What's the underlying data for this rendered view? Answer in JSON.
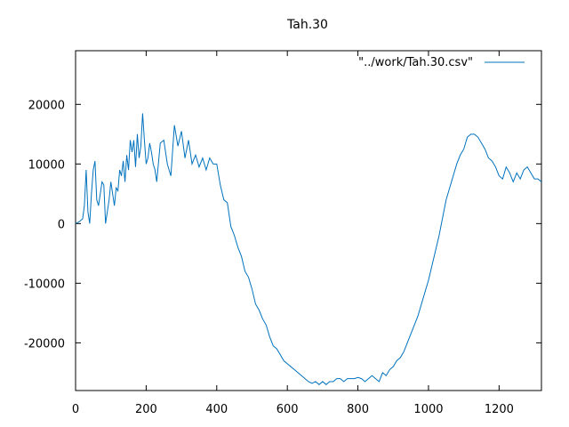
{
  "chart_data": {
    "type": "line",
    "title": "Tah.30",
    "xlabel": "",
    "ylabel": "",
    "xlim": [
      0,
      1320
    ],
    "ylim": [
      -28000,
      29000
    ],
    "x_ticks": [
      0,
      200,
      400,
      600,
      800,
      1000,
      1200
    ],
    "y_ticks": [
      -20000,
      -10000,
      0,
      10000,
      20000
    ],
    "x_tick_labels": [
      "0",
      "200",
      "400",
      "600",
      "800",
      "1000",
      "1200"
    ],
    "y_tick_labels": [
      "-20000",
      "-10000",
      "0",
      "10000",
      "20000"
    ],
    "grid": false,
    "legend": {
      "position": "top-right",
      "entries": [
        "\"../work/Tah.30.csv\""
      ]
    },
    "series": [
      {
        "name": "\"../work/Tah.30.csv\"",
        "color": "#0072bd",
        "x": [
          0,
          10,
          20,
          25,
          30,
          35,
          40,
          45,
          50,
          55,
          60,
          65,
          70,
          75,
          80,
          85,
          90,
          95,
          100,
          105,
          110,
          115,
          120,
          125,
          130,
          135,
          140,
          145,
          150,
          155,
          160,
          165,
          170,
          175,
          180,
          185,
          190,
          195,
          200,
          205,
          210,
          215,
          220,
          225,
          230,
          240,
          250,
          260,
          270,
          280,
          290,
          300,
          310,
          320,
          330,
          340,
          350,
          360,
          370,
          380,
          390,
          400,
          410,
          420,
          430,
          440,
          450,
          460,
          470,
          480,
          490,
          500,
          510,
          520,
          530,
          540,
          550,
          560,
          570,
          580,
          590,
          600,
          610,
          620,
          630,
          640,
          650,
          660,
          670,
          680,
          690,
          700,
          710,
          720,
          730,
          740,
          750,
          760,
          770,
          780,
          790,
          800,
          810,
          820,
          830,
          840,
          850,
          860,
          870,
          880,
          890,
          900,
          910,
          920,
          930,
          940,
          950,
          960,
          970,
          980,
          990,
          1000,
          1010,
          1020,
          1030,
          1040,
          1050,
          1060,
          1070,
          1080,
          1090,
          1100,
          1110,
          1120,
          1130,
          1140,
          1150,
          1160,
          1170,
          1180,
          1190,
          1200,
          1210,
          1220,
          1230,
          1240,
          1250,
          1260,
          1270,
          1280,
          1290,
          1300,
          1310,
          1320
        ],
        "values": [
          0,
          300,
          800,
          3000,
          9000,
          2000,
          0,
          5000,
          9000,
          10500,
          4000,
          3000,
          5000,
          7000,
          6500,
          0,
          2000,
          4000,
          7000,
          5000,
          3000,
          6000,
          5500,
          9000,
          8000,
          10500,
          7000,
          11500,
          9000,
          14000,
          12000,
          14000,
          9500,
          15000,
          11000,
          13000,
          18500,
          14000,
          10000,
          11000,
          13500,
          12000,
          10000,
          9000,
          7000,
          13500,
          14000,
          10000,
          8000,
          16500,
          13000,
          15500,
          11000,
          14000,
          10000,
          11500,
          9500,
          11000,
          9000,
          11000,
          10000,
          10000,
          6500,
          4000,
          3500,
          -500,
          -2000,
          -4000,
          -5500,
          -8000,
          -9000,
          -11000,
          -13500,
          -14500,
          -16000,
          -17000,
          -19000,
          -20500,
          -21000,
          -22000,
          -23000,
          -23500,
          -24000,
          -24500,
          -25000,
          -25500,
          -26000,
          -26500,
          -26800,
          -26500,
          -27000,
          -26500,
          -27000,
          -26500,
          -26500,
          -26000,
          -26000,
          -26500,
          -26000,
          -26000,
          -26000,
          -25800,
          -26000,
          -26500,
          -26000,
          -25500,
          -26000,
          -26500,
          -25000,
          -25500,
          -24500,
          -24000,
          -23000,
          -22500,
          -21500,
          -20000,
          -18500,
          -17000,
          -15500,
          -13500,
          -11500,
          -9500,
          -7000,
          -4500,
          -2000,
          1000,
          4000,
          6000,
          8000,
          10000,
          11500,
          12500,
          14500,
          15000,
          15000,
          14500,
          13500,
          12500,
          11000,
          10500,
          9500,
          8000,
          7500,
          9500,
          8500,
          7000,
          8500,
          7500,
          9000,
          9500,
          8500,
          7500,
          7500,
          7000
        ]
      }
    ]
  }
}
